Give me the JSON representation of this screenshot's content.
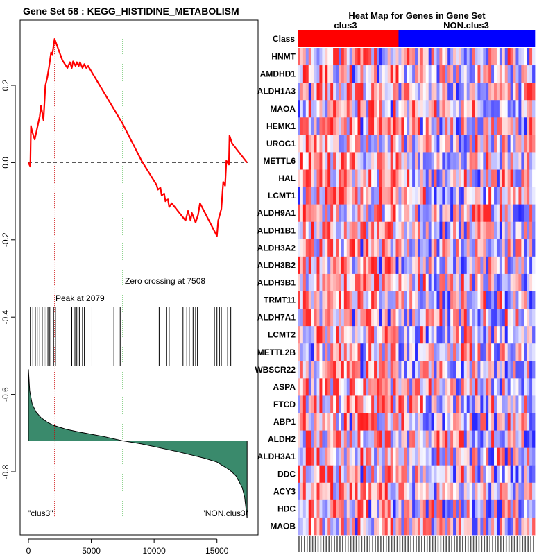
{
  "chart_data": [
    {
      "type": "line",
      "title": "Gene Set  58 : KEGG_HISTIDINE_METABOLISM",
      "xlim": [
        0,
        17500
      ],
      "ylim": [
        -0.95,
        0.35
      ],
      "x_ticks": [
        0,
        5000,
        10000,
        15000
      ],
      "y_ticks": [
        0.2,
        0.0,
        -0.2,
        -0.4,
        -0.6,
        -0.8
      ],
      "y_tick_labels": [
        "0.2",
        "0.0",
        "-0.2",
        "-0.4",
        "-0.6",
        "-0.8"
      ],
      "peak": {
        "x": 2079,
        "label": "Peak at 2079"
      },
      "zero_crossing": {
        "x": 7508,
        "label": "Zero crossing at 7508"
      },
      "left_label": "\"clus3\"",
      "right_label": "\"NON.clus3\"",
      "running_es": {
        "x": [
          0,
          150,
          200,
          300,
          500,
          900,
          1000,
          1200,
          1350,
          1500,
          1650,
          1800,
          1900,
          2079,
          2700,
          3100,
          3300,
          3450,
          3550,
          3750,
          3850,
          4000,
          4100,
          4300,
          4450,
          4600,
          4750,
          7508,
          9000,
          10200,
          10300,
          10500,
          10600,
          10800,
          10900,
          11100,
          11200,
          11400,
          12500,
          12700,
          12900,
          13000,
          13300,
          13500,
          13650,
          15000,
          15100,
          15350,
          15500,
          15650,
          15750,
          15950,
          16000,
          16200,
          17400
        ],
        "y": [
          0.0,
          -0.01,
          0.095,
          0.08,
          0.06,
          0.12,
          0.147,
          0.11,
          0.2,
          0.22,
          0.25,
          0.285,
          0.28,
          0.32,
          0.265,
          0.245,
          0.26,
          0.245,
          0.262,
          0.25,
          0.26,
          0.25,
          0.26,
          0.245,
          0.255,
          0.245,
          0.25,
          0.1,
          0.005,
          -0.058,
          -0.07,
          -0.065,
          -0.085,
          -0.08,
          -0.1,
          -0.095,
          -0.115,
          -0.105,
          -0.15,
          -0.125,
          -0.15,
          -0.13,
          -0.155,
          -0.135,
          -0.105,
          -0.19,
          -0.15,
          -0.12,
          -0.05,
          -0.06,
          0.005,
          -0.005,
          0.07,
          0.05,
          0.0
        ]
      },
      "hits": [
        150,
        350,
        550,
        700,
        900,
        1100,
        1250,
        1400,
        1550,
        1700,
        2000,
        2150,
        3450,
        3700,
        3850,
        4050,
        4300,
        4450,
        5050,
        6800,
        7300,
        10400,
        11000,
        11200,
        12300,
        12600,
        12800,
        13100,
        13300,
        13450,
        14800,
        15000,
        15200,
        15350,
        15650,
        15850,
        16100
      ],
      "ranked_metric": {
        "x": [
          0,
          100,
          300,
          600,
          1000,
          1500,
          2000,
          3000,
          4000,
          5000,
          6000,
          7508,
          9000,
          10000,
          11000,
          12000,
          13000,
          14000,
          15000,
          16000,
          16500,
          17000,
          17200,
          17400
        ],
        "y": [
          -0.535,
          -0.59,
          -0.625,
          -0.645,
          -0.66,
          -0.672,
          -0.68,
          -0.69,
          -0.697,
          -0.703,
          -0.709,
          -0.72,
          -0.728,
          -0.735,
          -0.742,
          -0.749,
          -0.757,
          -0.765,
          -0.775,
          -0.795,
          -0.81,
          -0.84,
          -0.865,
          -0.92
        ]
      },
      "ranked_metric_baseline": -0.72
    },
    {
      "type": "heatmap",
      "title": "Heat Map for Genes in Gene Set",
      "class_row_label": "Class",
      "groups": [
        {
          "name": "clus3",
          "color": "#ff0000",
          "count": 37
        },
        {
          "name": "NON.clus3",
          "color": "#0000ff",
          "count": 50
        }
      ],
      "genes": [
        "HNMT",
        "AMDHD1",
        "ALDH1A3",
        "MAOA",
        "HEMK1",
        "UROC1",
        "METTL6",
        "HAL",
        "LCMT1",
        "ALDH9A1",
        "ALDH1B1",
        "ALDH3A2",
        "ALDH3B2",
        "ALDH3B1",
        "TRMT11",
        "ALDH7A1",
        "LCMT2",
        "METTL2B",
        "WBSCR22",
        "ASPA",
        "FTCD",
        "ABP1",
        "ALDH2",
        "ALDH3A1",
        "DDC",
        "ACY3",
        "HDC",
        "MAOB"
      ],
      "n_samples": 87
    }
  ],
  "colors": {
    "es_line": "#ff0000",
    "baseline": "#404040",
    "peak_line": "#cc0000",
    "zero_line": "#22aa22",
    "metric_fill": "#3a8a6c",
    "heat_high": "#ff0000",
    "heat_mid": "#ffffff",
    "heat_low": "#0000ff"
  }
}
